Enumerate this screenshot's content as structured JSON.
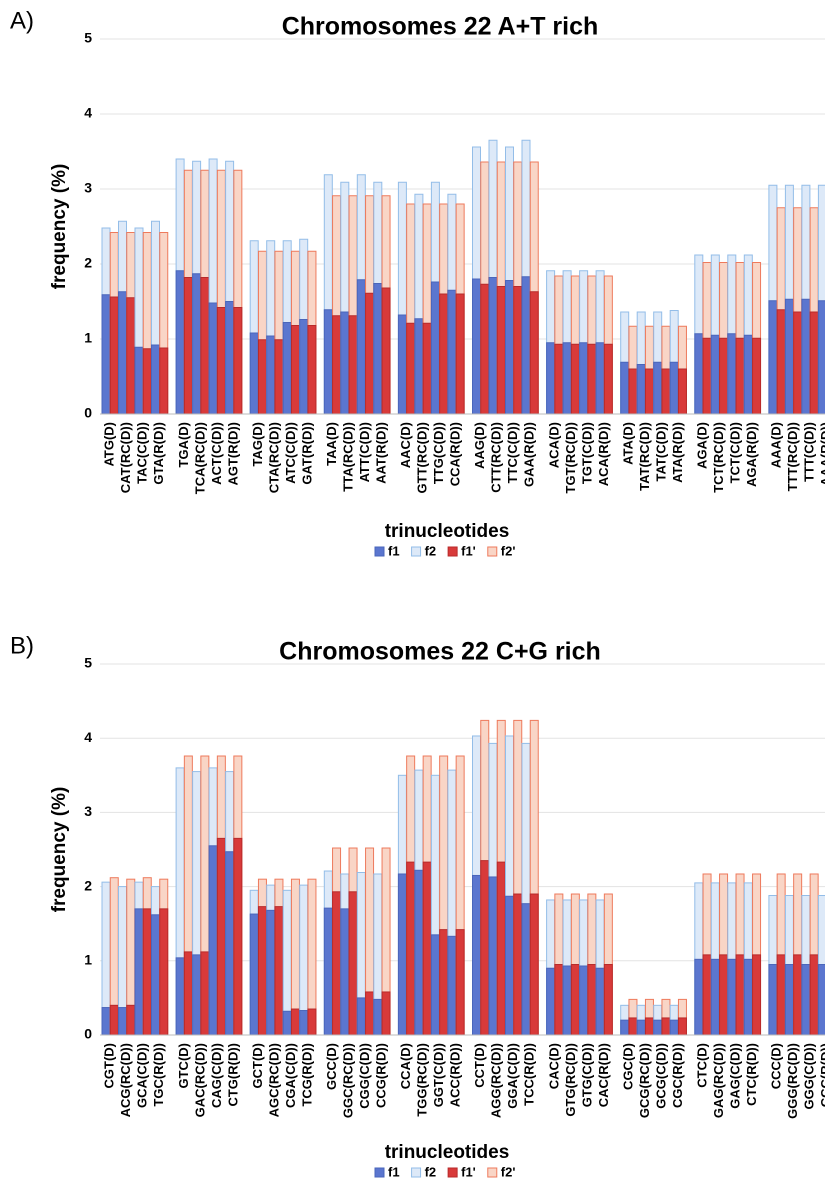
{
  "chart_data": [
    {
      "type": "bar",
      "panel_label": "A)",
      "title": "Chromosomes 22 A+T rich",
      "x_label": "trinucleotides",
      "y_label": "frequency (%)",
      "ylim": [
        0,
        5
      ],
      "yticks": [
        0,
        1,
        2,
        3,
        4,
        5
      ],
      "grid": true,
      "legend": "bottom",
      "categories": [
        "ATG(D)",
        "CAT(RC(D))",
        "TAC(C(D))",
        "GTA(R(D))",
        "TGA(D)",
        "TCA(RC(D))",
        "ACT(C(D))",
        "AGT(R(D))",
        "TAG(D)",
        "CTA(RC(D))",
        "ATC(C(D))",
        "GAT(R(D))",
        "TAA(D)",
        "TTA(RC(D))",
        "ATT(C(D))",
        "AAT(R(D))",
        "AAC(D)",
        "GTT(RC(D))",
        "TTG(C(D))",
        "CCA(R(D))",
        "AAG(D)",
        "CTT(RC(D))",
        "TTC(C(D))",
        "GAA(R(D))",
        "ACA(D)",
        "TGT(RC(D))",
        "TGT(C(D))",
        "ACA(R(D))",
        "ATA(D)",
        "TAT(RC(D))",
        "TAT(C(D))",
        "ATA(R(D))",
        "AGA(D)",
        "TCT(RC(D))",
        "TCT(C(D))",
        "AGA(R(D))",
        "AAA(D)",
        "TTT(RC(D))",
        "TTT(C(D))",
        "AAA(R(D))"
      ],
      "series": [
        {
          "name": "f1",
          "color": "#5b76cf",
          "edgecolor": "#4a66bb",
          "values": [
            1.59,
            1.63,
            0.89,
            0.92,
            1.91,
            1.87,
            1.48,
            1.5,
            1.08,
            1.04,
            1.22,
            1.26,
            1.39,
            1.36,
            1.79,
            1.74,
            1.32,
            1.27,
            1.76,
            1.65,
            1.8,
            1.82,
            1.78,
            1.83,
            0.95,
            0.95,
            0.95,
            0.95,
            0.69,
            0.66,
            0.69,
            0.69,
            1.07,
            1.05,
            1.07,
            1.05,
            1.51,
            1.53,
            1.53,
            1.51
          ]
        },
        {
          "name": "f2",
          "color": "#dde9f8",
          "edgecolor": "#93bde8",
          "values": [
            2.48,
            2.57,
            2.48,
            2.57,
            3.4,
            3.37,
            3.4,
            3.37,
            2.31,
            2.31,
            2.31,
            2.33,
            3.19,
            3.09,
            3.19,
            3.09,
            3.09,
            2.93,
            3.09,
            2.93,
            3.56,
            3.65,
            3.56,
            3.65,
            1.91,
            1.91,
            1.91,
            1.91,
            1.36,
            1.36,
            1.36,
            1.38,
            2.12,
            2.12,
            2.12,
            2.12,
            3.05,
            3.05,
            3.05,
            3.05
          ]
        },
        {
          "name": "f1'",
          "color": "#d83a3a",
          "edgecolor": "#b82a2a",
          "values": [
            1.56,
            1.55,
            0.87,
            0.88,
            1.82,
            1.82,
            1.42,
            1.42,
            0.99,
            0.99,
            1.18,
            1.18,
            1.31,
            1.31,
            1.61,
            1.68,
            1.21,
            1.21,
            1.6,
            1.6,
            1.73,
            1.7,
            1.7,
            1.63,
            0.93,
            0.93,
            0.93,
            0.93,
            0.6,
            0.6,
            0.6,
            0.6,
            1.01,
            1.01,
            1.01,
            1.01,
            1.39,
            1.36,
            1.36,
            1.36
          ]
        },
        {
          "name": "f2'",
          "color": "#f9d5c6",
          "edgecolor": "#ee7a5c",
          "values": [
            2.42,
            2.42,
            2.42,
            2.42,
            3.25,
            3.25,
            3.25,
            3.25,
            2.17,
            2.17,
            2.17,
            2.17,
            2.91,
            2.91,
            2.91,
            2.91,
            2.8,
            2.8,
            2.8,
            2.8,
            3.36,
            3.36,
            3.36,
            3.36,
            1.84,
            1.84,
            1.84,
            1.84,
            1.17,
            1.17,
            1.17,
            1.17,
            2.02,
            2.02,
            2.02,
            2.02,
            2.75,
            2.75,
            2.75,
            2.75
          ]
        }
      ]
    },
    {
      "type": "bar",
      "panel_label": "B)",
      "title": "Chromosomes 22 C+G rich",
      "x_label": "trinucleotides",
      "y_label": "frequency (%)",
      "ylim": [
        0,
        5
      ],
      "yticks": [
        0,
        1,
        2,
        3,
        4,
        5
      ],
      "grid": true,
      "legend": "bottom",
      "categories": [
        "CGT(D)",
        "ACG(RC(D))",
        "GCA(C(D))",
        "TGC(R(D))",
        "GTC(D)",
        "GAC(RC(D))",
        "CAG(C(D))",
        "CTG(R(D))",
        "GCT(D)",
        "AGC(RC(D))",
        "CGA(C(D))",
        "TCG(R(D))",
        "GCC(D)",
        "GGC(RC(D))",
        "CGG(C(D))",
        "CCG(R(D))",
        "CCA(D)",
        "TGG(RC(D))",
        "GGT(C(D))",
        "ACC(R(D))",
        "CCT(D)",
        "AGG(RC(D))",
        "GGA(C(D))",
        "TCC(R(D))",
        "CAC(D)",
        "GTG(RC(D))",
        "GTG(C(D))",
        "CAC(R(D))",
        "CGC(D)",
        "GCG(RC(D))",
        "GCG(C(D))",
        "CGC(R(D))",
        "CTC(D)",
        "GAG(RC(D))",
        "GAG(C(D))",
        "CTC(R(D))",
        "CCC(D)",
        "GGG(RC(D))",
        "GGG(C(D))",
        "CCC(R(D))"
      ],
      "series": [
        {
          "name": "f1",
          "color": "#5b76cf",
          "edgecolor": "#4a66bb",
          "values": [
            0.37,
            0.37,
            1.7,
            1.62,
            1.04,
            1.08,
            2.55,
            2.47,
            1.63,
            1.68,
            0.32,
            0.33,
            1.71,
            1.7,
            0.5,
            0.48,
            2.17,
            2.22,
            1.35,
            1.33,
            2.15,
            2.13,
            1.87,
            1.77,
            0.9,
            0.93,
            0.93,
            0.9,
            0.2,
            0.2,
            0.2,
            0.2,
            1.02,
            1.02,
            1.02,
            1.02,
            0.95,
            0.95,
            0.95,
            0.95
          ]
        },
        {
          "name": "f2",
          "color": "#dde9f8",
          "edgecolor": "#93bde8",
          "values": [
            2.06,
            2.0,
            2.06,
            2.0,
            3.6,
            3.55,
            3.6,
            3.55,
            1.95,
            2.02,
            1.95,
            2.02,
            2.21,
            2.17,
            2.19,
            2.17,
            3.5,
            3.57,
            3.5,
            3.57,
            4.03,
            3.93,
            4.03,
            3.93,
            1.82,
            1.82,
            1.82,
            1.82,
            0.4,
            0.4,
            0.4,
            0.4,
            2.05,
            2.05,
            2.05,
            2.05,
            1.88,
            1.88,
            1.88,
            1.88
          ]
        },
        {
          "name": "f1'",
          "color": "#d83a3a",
          "edgecolor": "#b82a2a",
          "values": [
            0.4,
            0.4,
            1.7,
            1.7,
            1.12,
            1.12,
            2.65,
            2.65,
            1.73,
            1.73,
            0.35,
            0.35,
            1.93,
            1.93,
            0.58,
            0.58,
            2.33,
            2.33,
            1.42,
            1.42,
            2.35,
            2.33,
            1.9,
            1.9,
            0.95,
            0.95,
            0.95,
            0.95,
            0.23,
            0.23,
            0.23,
            0.23,
            1.08,
            1.08,
            1.08,
            1.08,
            1.08,
            1.08,
            1.08,
            1.08
          ]
        },
        {
          "name": "f2'",
          "color": "#f9d5c6",
          "edgecolor": "#ee7a5c",
          "values": [
            2.12,
            2.1,
            2.12,
            2.1,
            3.76,
            3.76,
            3.76,
            3.76,
            2.1,
            2.1,
            2.1,
            2.1,
            2.52,
            2.52,
            2.52,
            2.52,
            3.76,
            3.76,
            3.76,
            3.76,
            4.24,
            4.24,
            4.24,
            4.24,
            1.9,
            1.9,
            1.9,
            1.9,
            0.48,
            0.48,
            0.48,
            0.48,
            2.17,
            2.17,
            2.17,
            2.17,
            2.17,
            2.17,
            2.17,
            2.17
          ]
        }
      ]
    }
  ]
}
